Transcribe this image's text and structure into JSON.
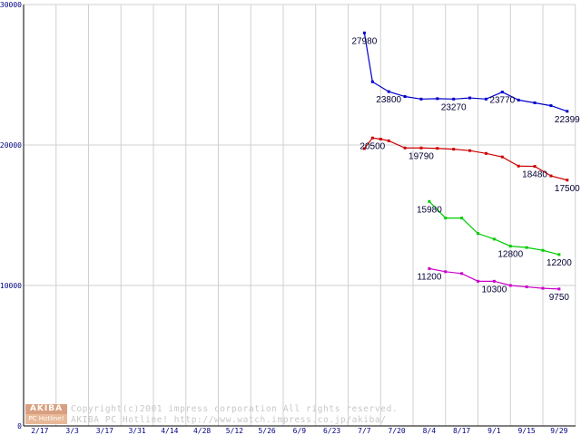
{
  "chart_data": {
    "type": "line",
    "title": "",
    "xlabel": "",
    "ylabel": "",
    "ylim": [
      0,
      30000
    ],
    "grid": true,
    "y_ticks": [
      "30000",
      "20000",
      "10000",
      "0"
    ],
    "categories": [
      "2/17",
      "3/3",
      "3/17",
      "3/31",
      "4/14",
      "4/28",
      "5/12",
      "5/26",
      "6/9",
      "6/23",
      "7/7",
      "7/20",
      "8/4",
      "8/17",
      "9/1",
      "9/15",
      "9/29"
    ],
    "series": [
      {
        "color": "#0000cc",
        "x": [
          10,
          10.25,
          10.75,
          11.25,
          11.75,
          12.25,
          12.75,
          13.25,
          13.75,
          14.25,
          14.75,
          15.25,
          15.75,
          16.25
        ],
        "values": [
          27980,
          24500,
          23800,
          23450,
          23270,
          23300,
          23270,
          23350,
          23270,
          23770,
          23200,
          23000,
          22800,
          22399
        ]
      },
      {
        "color": "#cc0000",
        "x": [
          10,
          10.25,
          10.5,
          10.75,
          11.25,
          11.75,
          12.25,
          12.75,
          13.25,
          13.75,
          14.25,
          14.75,
          15.25,
          15.75,
          16.25
        ],
        "values": [
          19750,
          20500,
          20420,
          20300,
          19790,
          19790,
          19760,
          19700,
          19600,
          19400,
          19150,
          18500,
          18480,
          17800,
          17500
        ]
      },
      {
        "color": "#00cc00",
        "x": [
          12,
          12.5,
          13,
          13.5,
          14,
          14.5,
          15,
          15.5,
          16
        ],
        "values": [
          15980,
          14800,
          14800,
          13700,
          13300,
          12800,
          12700,
          12500,
          12200
        ]
      },
      {
        "color": "#cc00cc",
        "x": [
          12,
          12.5,
          13,
          13.5,
          14,
          14.5,
          15,
          15.5,
          16
        ],
        "values": [
          11200,
          10980,
          10850,
          10300,
          10300,
          10000,
          9900,
          9800,
          9750
        ]
      }
    ],
    "data_labels": [
      {
        "text": "27980",
        "series": 0,
        "point": 0
      },
      {
        "text": "23800",
        "series": 0,
        "point": 2
      },
      {
        "text": "23270",
        "series": 0,
        "point": 6
      },
      {
        "text": "23770",
        "series": 0,
        "point": 9
      },
      {
        "text": "22399",
        "series": 0,
        "point": 13
      },
      {
        "text": "20500",
        "series": 1,
        "point": 1
      },
      {
        "text": "19790",
        "series": 1,
        "point": 5
      },
      {
        "text": "18480",
        "series": 1,
        "point": 12
      },
      {
        "text": "17500",
        "series": 1,
        "point": 14
      },
      {
        "text": "15980",
        "series": 2,
        "point": 0
      },
      {
        "text": "12800",
        "series": 2,
        "point": 5
      },
      {
        "text": "12200",
        "series": 2,
        "point": 8
      },
      {
        "text": "11200",
        "series": 3,
        "point": 0
      },
      {
        "text": "10300",
        "series": 3,
        "point": 4
      },
      {
        "text": "9750",
        "series": 3,
        "point": 8
      }
    ],
    "logo": {
      "line1": "AKIBA",
      "line2": "PC Hotline!"
    },
    "copyright": [
      "Copyright(c)2001 impress corporation All rights reserved.",
      "AKIBA PC Hotline!  http://www.watch.impress.co.jp/akiba/"
    ]
  }
}
